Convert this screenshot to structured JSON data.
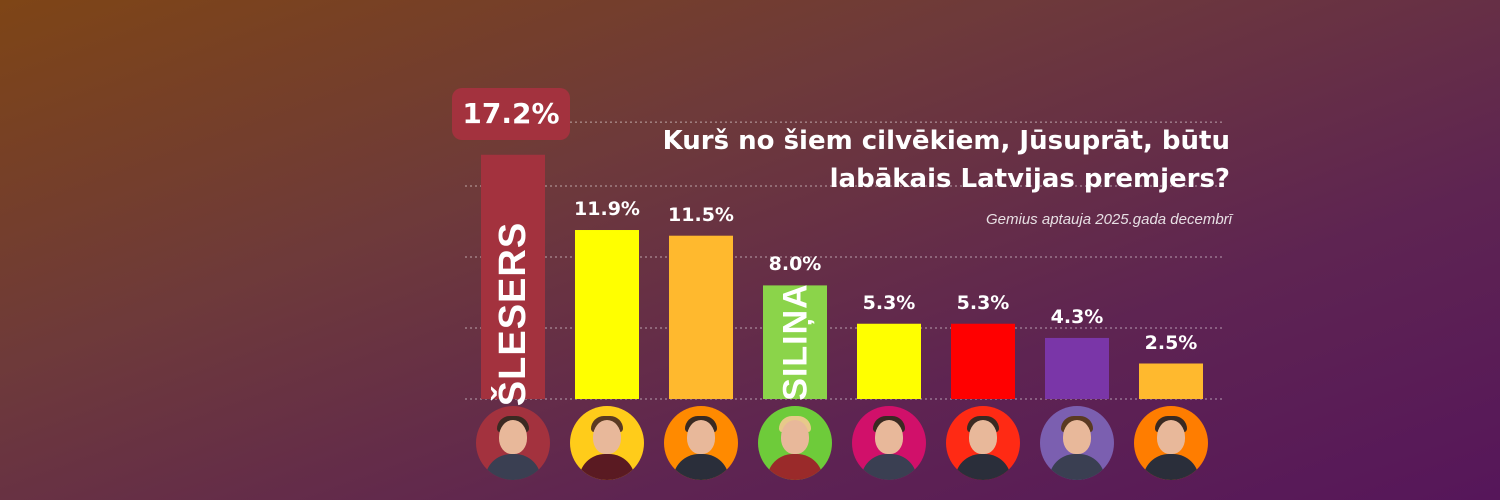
{
  "chart_data": {
    "type": "bar",
    "title": "Kurš no šiem cilvēkiem, Jūsuprāt, būtu labākais Latvijas premjers?",
    "subtitle": "Gemius aptauja 2025.gada decembrī",
    "ylim": [
      0,
      20
    ],
    "grid": true,
    "values": [
      17.2,
      11.9,
      11.5,
      8.0,
      5.3,
      5.3,
      4.3,
      2.5
    ],
    "value_labels": [
      "17.2%",
      "11.9%",
      "11.5%",
      "8.0%",
      "5.3%",
      "5.3%",
      "4.3%",
      "2.5%"
    ],
    "bar_names": [
      "ŠLESERS",
      "",
      "",
      "SILIŅA",
      "",
      "",
      "",
      ""
    ],
    "bar_colors": [
      "#a3323e",
      "#ffff00",
      "#ffb92e",
      "#8bd44a",
      "#ffff00",
      "#ff0000",
      "#7a36a8",
      "#ffb92e"
    ],
    "avatar_rings": [
      "#a3323e",
      "#ffcc1a",
      "#ff8a00",
      "#6ecb3a",
      "#d1106a",
      "#ff2a14",
      "#7b5fb0",
      "#ff7d00"
    ],
    "avatar_icons": [
      "person-icon",
      "person-icon",
      "person-icon",
      "person-icon",
      "person-icon",
      "person-icon",
      "person-icon",
      "person-icon"
    ]
  }
}
